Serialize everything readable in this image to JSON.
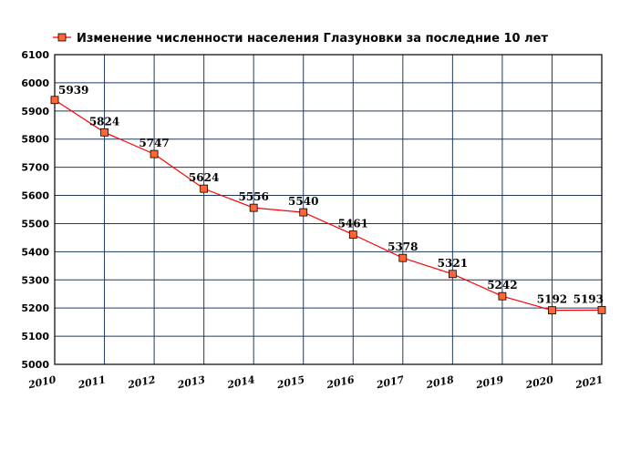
{
  "chart_data": {
    "type": "line",
    "title": "",
    "xlabel": "",
    "ylabel": "",
    "x": [
      "2010",
      "2011",
      "2012",
      "2013",
      "2014",
      "2015",
      "2016",
      "2017",
      "2018",
      "2019",
      "2020",
      "2021"
    ],
    "series": [
      {
        "name": "Изменение численности населения Глазуновки за последние 10 лет",
        "values": [
          5939,
          5824,
          5747,
          5624,
          5556,
          5540,
          5461,
          5378,
          5321,
          5242,
          5192,
          5193
        ],
        "color": "#ff0000",
        "marker_fill": "#ff6633"
      }
    ],
    "ylim": [
      5000,
      6100
    ],
    "yticks": [
      5000,
      5100,
      5200,
      5300,
      5400,
      5500,
      5600,
      5700,
      5800,
      5900,
      6000,
      6100
    ],
    "grid": true,
    "grid_color": "#1f3a5f",
    "legend_position": "top-left"
  }
}
